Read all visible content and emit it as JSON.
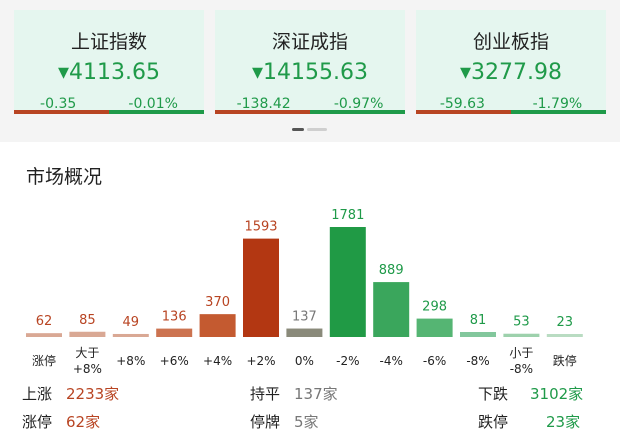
{
  "indices": [
    {
      "name": "上证指数",
      "value": "4113.65",
      "change": "-0.35",
      "pct": "-0.01%",
      "down_ratio": 0.5
    },
    {
      "name": "深证成指",
      "value": "14155.63",
      "change": "-138.42",
      "pct": "-0.97%",
      "down_ratio": 0.5
    },
    {
      "name": "创业板指",
      "value": "3277.98",
      "change": "-59.63",
      "pct": "-1.79%",
      "down_ratio": 0.5
    }
  ],
  "section_title": "市场概况",
  "chart_data": {
    "type": "bar",
    "categories": [
      "涨停",
      "大于\n+8%",
      "+8%",
      "+6%",
      "+4%",
      "+2%",
      "0%",
      "-2%",
      "-4%",
      "-6%",
      "-8%",
      "小于\n-8%",
      "跌停"
    ],
    "values": [
      62,
      85,
      49,
      136,
      370,
      1593,
      137,
      1781,
      889,
      298,
      81,
      53,
      23
    ],
    "colors": [
      "#d9a894",
      "#d9a894",
      "#d9a894",
      "#cc7350",
      "#c45a30",
      "#b33712",
      "#8a8a7a",
      "#209a45",
      "#3aa65c",
      "#55b573",
      "#82c79c",
      "#9dd1ac",
      "#b9dcc2"
    ],
    "label_colors": [
      "#b84422",
      "#b84422",
      "#b84422",
      "#b84422",
      "#b84422",
      "#b84422",
      "#777777",
      "#1f9a49",
      "#1f9a49",
      "#1f9a49",
      "#1f9a49",
      "#1f9a49",
      "#1f9a49"
    ]
  },
  "stats": {
    "rise_label": "上涨",
    "rise_value": "2233家",
    "flat_label": "持平",
    "flat_value": "137家",
    "fall_label": "下跌",
    "fall_value": "3102家",
    "limit_up_label": "涨停",
    "limit_up_value": "62家",
    "suspend_label": "停牌",
    "suspend_value": "5家",
    "limit_down_label": "跌停",
    "limit_down_value": "23家"
  },
  "colors": {
    "up": "#b84422",
    "down": "#1f9a49",
    "neutral": "#777777"
  }
}
